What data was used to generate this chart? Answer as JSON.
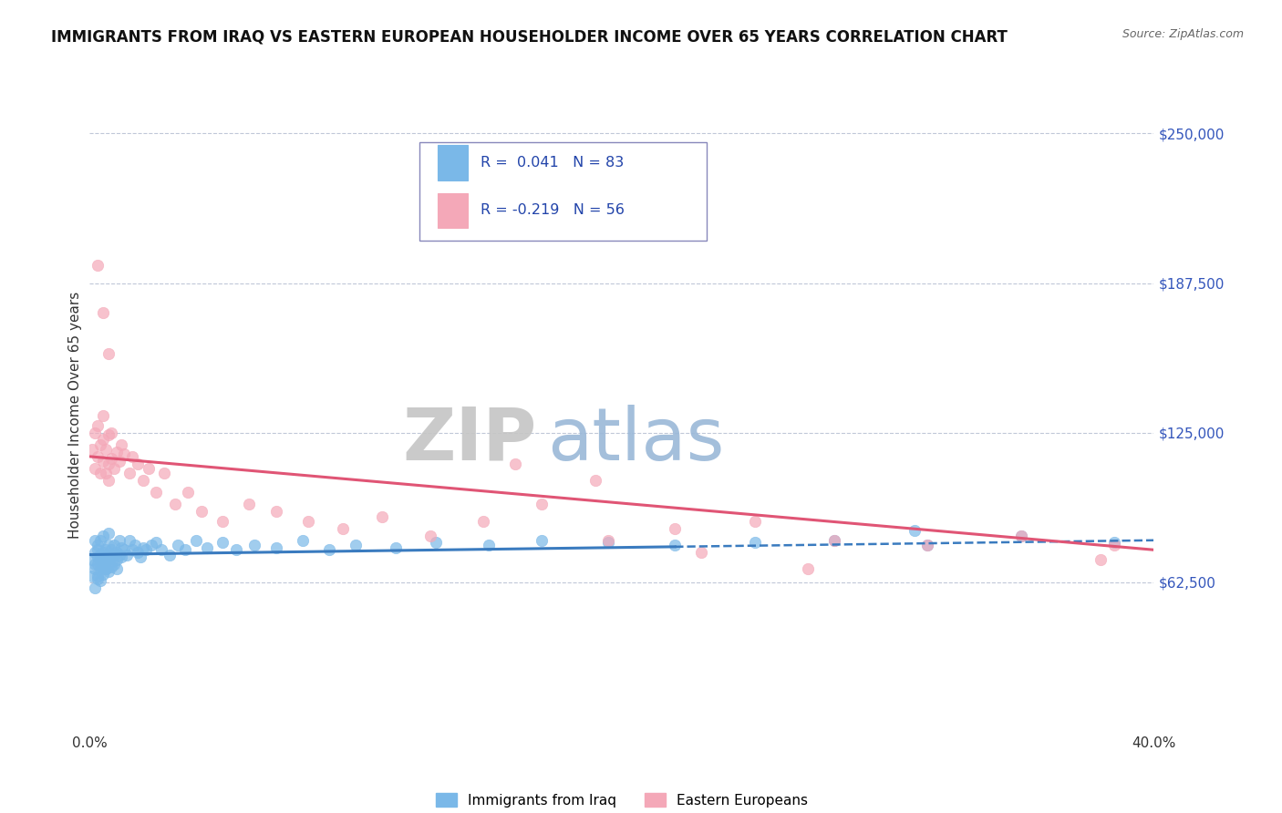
{
  "title": "IMMIGRANTS FROM IRAQ VS EASTERN EUROPEAN HOUSEHOLDER INCOME OVER 65 YEARS CORRELATION CHART",
  "source": "Source: ZipAtlas.com",
  "ylabel": "Householder Income Over 65 years",
  "yticks": [
    0,
    62500,
    125000,
    187500,
    250000
  ],
  "ytick_labels": [
    "",
    "$62,500",
    "$125,000",
    "$187,500",
    "$250,000"
  ],
  "xmin": 0.0,
  "xmax": 0.4,
  "ymin": 0,
  "ymax": 265000,
  "blue_R": 0.041,
  "blue_N": 83,
  "pink_R": -0.219,
  "pink_N": 56,
  "blue_color": "#7ab8e8",
  "pink_color": "#f4a8b8",
  "blue_line_color": "#3a7bbf",
  "pink_line_color": "#e05575",
  "watermark_ZIP": "ZIP",
  "watermark_atlas": "atlas",
  "watermark_gray": "#c5c5c5",
  "watermark_blue": "#9ab8d8",
  "legend_label_blue": "Immigrants from Iraq",
  "legend_label_pink": "Eastern Europeans",
  "blue_scatter_x": [
    0.001,
    0.001,
    0.002,
    0.002,
    0.002,
    0.002,
    0.003,
    0.003,
    0.003,
    0.003,
    0.003,
    0.004,
    0.004,
    0.004,
    0.004,
    0.005,
    0.005,
    0.005,
    0.005,
    0.005,
    0.006,
    0.006,
    0.006,
    0.006,
    0.007,
    0.007,
    0.007,
    0.007,
    0.008,
    0.008,
    0.008,
    0.009,
    0.009,
    0.009,
    0.01,
    0.01,
    0.01,
    0.011,
    0.011,
    0.012,
    0.012,
    0.013,
    0.014,
    0.015,
    0.016,
    0.017,
    0.018,
    0.019,
    0.02,
    0.021,
    0.023,
    0.025,
    0.027,
    0.03,
    0.033,
    0.036,
    0.04,
    0.044,
    0.05,
    0.055,
    0.062,
    0.07,
    0.08,
    0.09,
    0.1,
    0.115,
    0.13,
    0.15,
    0.17,
    0.195,
    0.22,
    0.25,
    0.28,
    0.315,
    0.35,
    0.385,
    0.002,
    0.003,
    0.004,
    0.005,
    0.006,
    0.008,
    0.31
  ],
  "blue_scatter_y": [
    72000,
    65000,
    70000,
    75000,
    80000,
    68000,
    73000,
    78000,
    65000,
    70000,
    76000,
    72000,
    68000,
    74000,
    80000,
    70000,
    75000,
    82000,
    66000,
    73000,
    71000,
    76000,
    68000,
    74000,
    72000,
    67000,
    78000,
    83000,
    73000,
    69000,
    76000,
    74000,
    70000,
    78000,
    72000,
    75000,
    68000,
    74000,
    80000,
    73000,
    77000,
    76000,
    74000,
    80000,
    76000,
    78000,
    75000,
    73000,
    77000,
    76000,
    78000,
    79000,
    76000,
    74000,
    78000,
    76000,
    80000,
    77000,
    79000,
    76000,
    78000,
    77000,
    80000,
    76000,
    78000,
    77000,
    79000,
    78000,
    80000,
    79000,
    78000,
    79000,
    80000,
    78000,
    82000,
    79000,
    60000,
    64000,
    63000,
    69000,
    68000,
    71000,
    84000
  ],
  "pink_scatter_x": [
    0.001,
    0.002,
    0.002,
    0.003,
    0.003,
    0.004,
    0.004,
    0.005,
    0.005,
    0.005,
    0.006,
    0.006,
    0.007,
    0.007,
    0.007,
    0.008,
    0.008,
    0.009,
    0.01,
    0.011,
    0.012,
    0.013,
    0.015,
    0.016,
    0.018,
    0.02,
    0.022,
    0.025,
    0.028,
    0.032,
    0.037,
    0.042,
    0.05,
    0.06,
    0.07,
    0.082,
    0.095,
    0.11,
    0.128,
    0.148,
    0.17,
    0.195,
    0.22,
    0.25,
    0.28,
    0.315,
    0.35,
    0.385,
    0.003,
    0.005,
    0.007,
    0.16,
    0.19,
    0.23,
    0.27,
    0.38
  ],
  "pink_scatter_y": [
    118000,
    110000,
    125000,
    115000,
    128000,
    108000,
    120000,
    113000,
    122000,
    132000,
    108000,
    118000,
    112000,
    124000,
    105000,
    114000,
    125000,
    110000,
    117000,
    113000,
    120000,
    116000,
    108000,
    115000,
    112000,
    105000,
    110000,
    100000,
    108000,
    95000,
    100000,
    92000,
    88000,
    95000,
    92000,
    88000,
    85000,
    90000,
    82000,
    88000,
    95000,
    80000,
    85000,
    88000,
    80000,
    78000,
    82000,
    78000,
    195000,
    175000,
    158000,
    112000,
    105000,
    75000,
    68000,
    72000
  ]
}
